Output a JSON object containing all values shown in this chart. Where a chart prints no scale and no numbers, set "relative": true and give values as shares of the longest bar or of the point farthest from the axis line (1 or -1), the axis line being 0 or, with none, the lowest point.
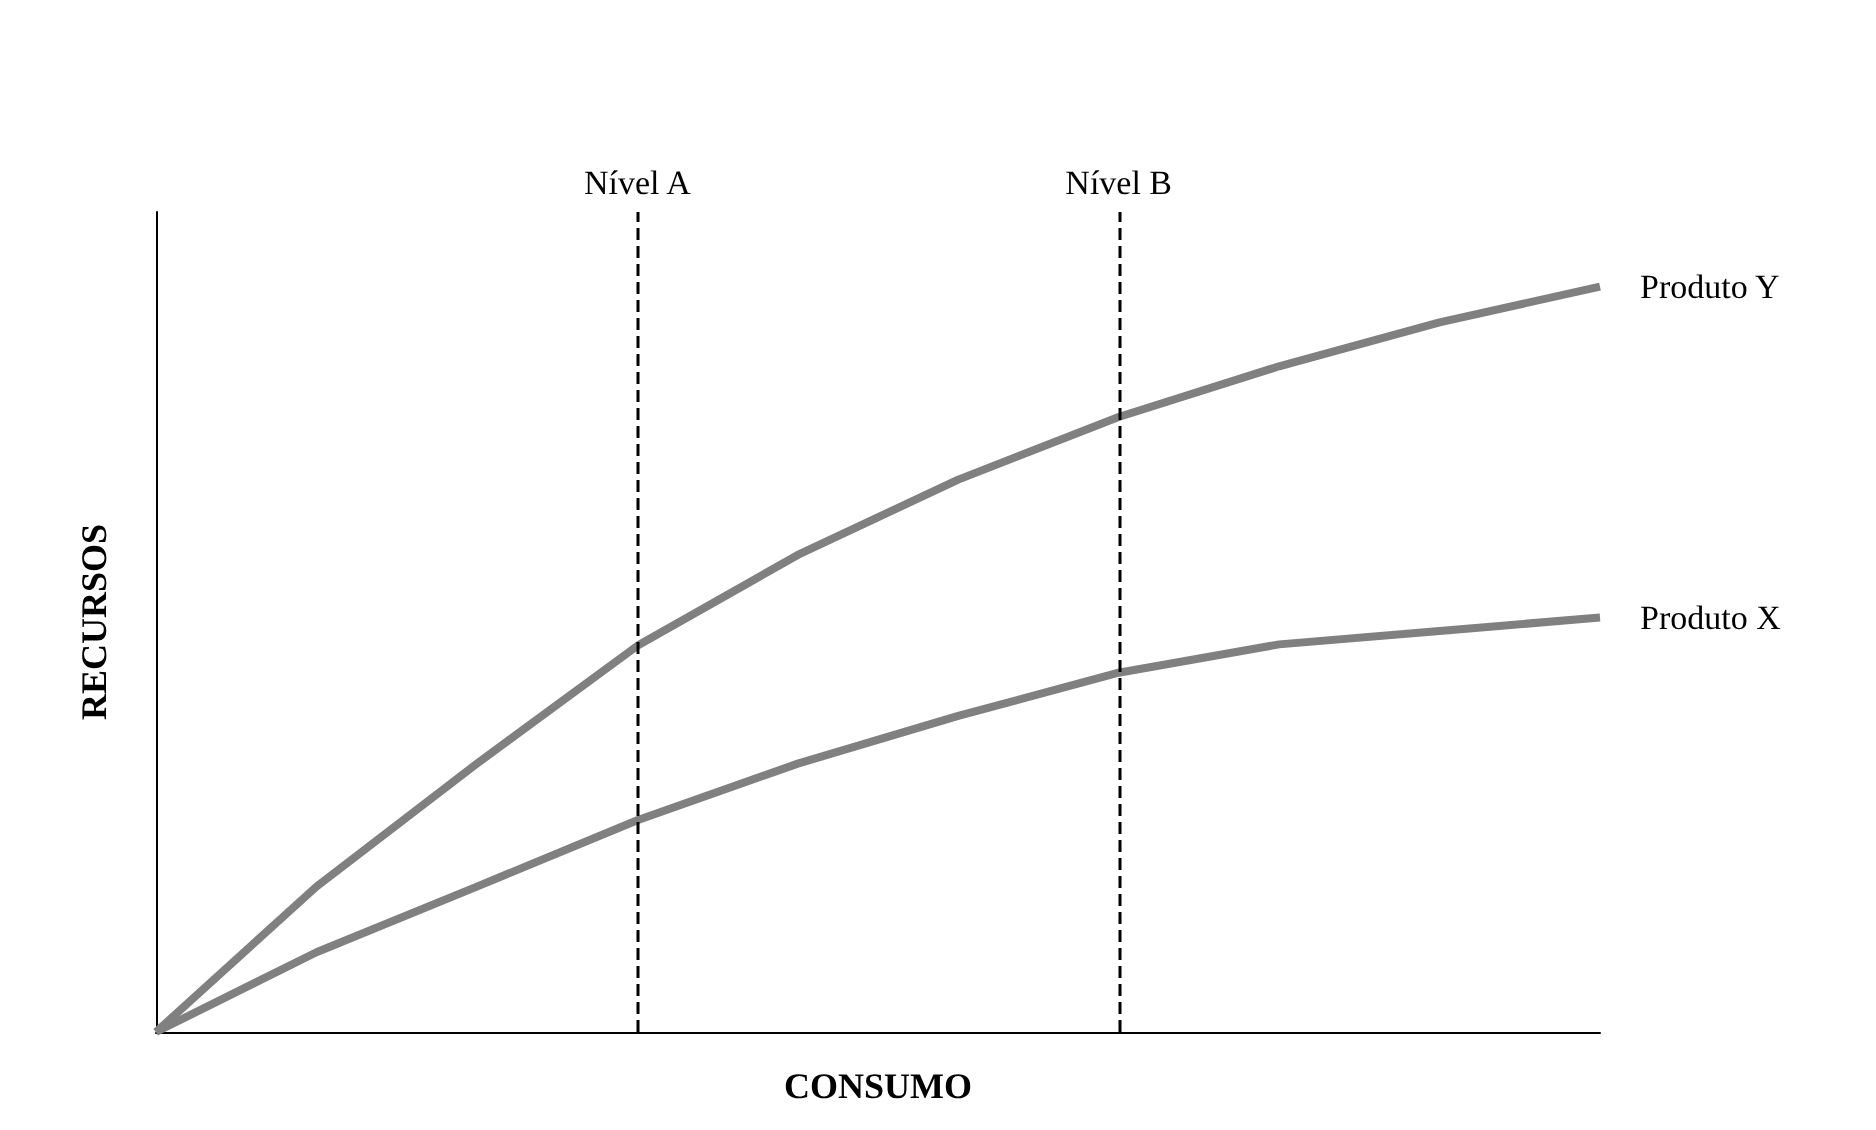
{
  "chart_data": {
    "type": "line",
    "xlabel": "CONSUMO",
    "ylabel": "RECURSOS",
    "relative": true,
    "grid": false,
    "legend": false,
    "marker": "none",
    "line_style": "solid",
    "categories": [
      null,
      null,
      null,
      null,
      null,
      null,
      null,
      null,
      null,
      null
    ],
    "series": [
      {
        "name": "Produto Y",
        "color": "#808080",
        "values": [
          0,
          0.195,
          0.36,
          0.518,
          0.64,
          0.741,
          0.825,
          0.893,
          0.952,
          1
        ]
      },
      {
        "name": "Produto X",
        "color": "#808080",
        "values": [
          0,
          0.107,
          0.195,
          0.284,
          0.36,
          0.424,
          0.482,
          0.52,
          0.538,
          0.556
        ]
      }
    ],
    "annotations": [
      "Nível A",
      "Nível B"
    ]
  }
}
